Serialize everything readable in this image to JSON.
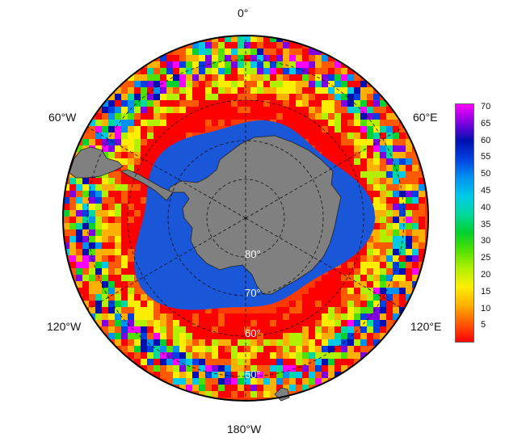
{
  "map": {
    "longitude_labels": {
      "top": "0°",
      "upper_left": "60°W",
      "upper_right": "60°E",
      "lower_left": "120°W",
      "lower_right": "120°E",
      "bottom": "180°W"
    },
    "latitude_labels": [
      "80°",
      "70°",
      "60°",
      "50°"
    ],
    "colorbar": {
      "ticks": [
        "70",
        "65",
        "60",
        "55",
        "50",
        "45",
        "40",
        "35",
        "30",
        "25",
        "20",
        "15",
        "10",
        "5"
      ],
      "colors_bottom_to_top": [
        "#ff0000",
        "#ff5a00",
        "#ffb000",
        "#ffee00",
        "#b0f000",
        "#50e000",
        "#00d030",
        "#00d8a0",
        "#00c8e8",
        "#0090f0",
        "#0040e0",
        "#0010b0",
        "#8000e0",
        "#ff00ff"
      ]
    },
    "colors": {
      "land": "#808080",
      "sea_ice": "#1a56d8",
      "ocean_high": "#ff2a00"
    }
  }
}
